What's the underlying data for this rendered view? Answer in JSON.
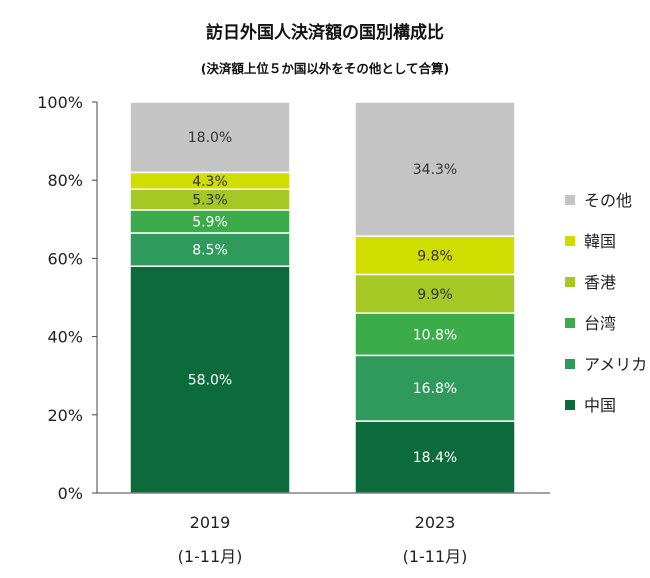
{
  "chart_data": {
    "type": "bar",
    "stacked": true,
    "title": "訪日外国人決済額の国別構成比",
    "subtitle": "(決済額上位５か国以外をその他として合算)",
    "categories": [
      "2019",
      "2023"
    ],
    "category_sublabels": [
      "(1-11月)",
      "(1-11月)"
    ],
    "ylim": [
      0,
      100
    ],
    "yticks": [
      "0%",
      "20%",
      "40%",
      "60%",
      "80%",
      "100%"
    ],
    "legend_position": "right",
    "series": [
      {
        "name": "中国",
        "color": "#0b6b3a",
        "values": [
          58.0,
          18.4
        ],
        "labels": [
          "58.0%",
          "18.4%"
        ],
        "label_color": "#ffffff"
      },
      {
        "name": "アメリカ",
        "color": "#2f9a5c",
        "values": [
          8.5,
          16.8
        ],
        "labels": [
          "8.5%",
          "16.8%"
        ],
        "label_color": "#ffffff"
      },
      {
        "name": "台湾",
        "color": "#3cac4a",
        "values": [
          5.9,
          10.8
        ],
        "labels": [
          "5.9%",
          "10.8%"
        ],
        "label_color": "#ffffff"
      },
      {
        "name": "香港",
        "color": "#a6c824",
        "values": [
          5.3,
          9.9
        ],
        "labels": [
          "5.3%",
          "9.9%"
        ],
        "label_color": "#333333"
      },
      {
        "name": "韓国",
        "color": "#cfdd00",
        "values": [
          4.3,
          9.8
        ],
        "labels": [
          "4.3%",
          "9.8%"
        ],
        "label_color": "#333333"
      },
      {
        "name": "その他",
        "color": "#c4c4c4",
        "values": [
          18.0,
          34.3
        ],
        "labels": [
          "18.0%",
          "34.3%"
        ],
        "label_color": "#333333"
      }
    ]
  }
}
